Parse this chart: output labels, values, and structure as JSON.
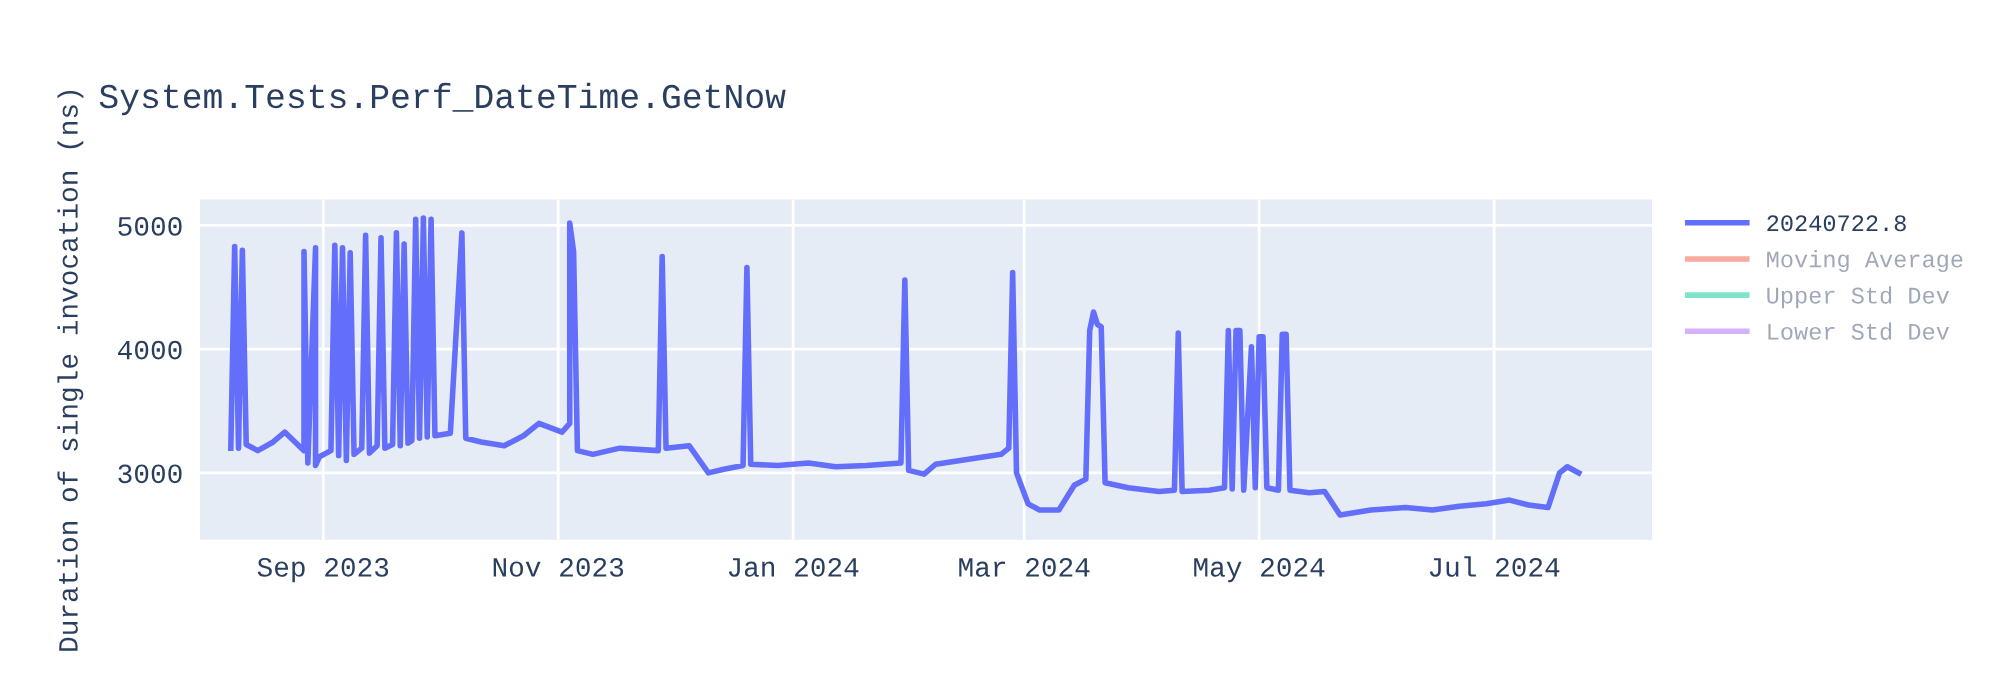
{
  "chart_data": {
    "type": "line",
    "title": "System.Tests.Perf_DateTime.GetNow",
    "ylabel": "Duration of single invocation (ns)",
    "xlim": [
      "2023-07-31",
      "2024-08-11"
    ],
    "ylim": [
      2460,
      5210
    ],
    "yticks": [
      3000,
      4000,
      5000
    ],
    "xticks": [
      {
        "value": "2023-09-01",
        "label": "Sep 2023"
      },
      {
        "value": "2023-11-01",
        "label": "Nov 2023"
      },
      {
        "value": "2024-01-01",
        "label": "Jan 2024"
      },
      {
        "value": "2024-03-01",
        "label": "Mar 2024"
      },
      {
        "value": "2024-05-01",
        "label": "May 2024"
      },
      {
        "value": "2024-07-01",
        "label": "Jul 2024"
      }
    ],
    "grid": true,
    "legend": "right",
    "marker": "none",
    "line_style": "solid",
    "series": [
      {
        "name": "20240722.8",
        "color": "#636efa",
        "x": [
          "2023-08-08",
          "2023-08-09",
          "2023-08-10",
          "2023-08-11",
          "2023-08-12",
          "2023-08-15",
          "2023-08-19",
          "2023-08-22",
          "2023-08-25",
          "2023-08-27",
          "2023-08-27",
          "2023-08-28",
          "2023-08-30",
          "2023-08-30",
          "2023-08-31",
          "2023-09-03",
          "2023-09-04",
          "2023-09-05",
          "2023-09-06",
          "2023-09-07",
          "2023-09-08",
          "2023-09-09",
          "2023-09-11",
          "2023-09-12",
          "2023-09-13",
          "2023-09-15",
          "2023-09-16",
          "2023-09-17",
          "2023-09-19",
          "2023-09-20",
          "2023-09-21",
          "2023-09-22",
          "2023-09-23",
          "2023-09-24",
          "2023-09-25",
          "2023-09-26",
          "2023-09-27",
          "2023-09-28",
          "2023-09-29",
          "2023-09-30",
          "2023-10-04",
          "2023-10-07",
          "2023-10-08",
          "2023-10-12",
          "2023-10-18",
          "2023-10-23",
          "2023-10-27",
          "2023-11-02",
          "2023-11-04",
          "2023-11-04",
          "2023-11-05",
          "2023-11-06",
          "2023-11-10",
          "2023-11-17",
          "2023-11-27",
          "2023-11-28",
          "2023-11-29",
          "2023-12-05",
          "2023-12-10",
          "2023-12-14",
          "2023-12-19",
          "2023-12-20",
          "2023-12-21",
          "2023-12-28",
          "2024-01-05",
          "2024-01-12",
          "2024-01-20",
          "2024-01-29",
          "2024-01-30",
          "2024-01-31",
          "2024-02-04",
          "2024-02-07",
          "2024-02-24",
          "2024-02-26",
          "2024-02-27",
          "2024-02-28",
          "2024-03-02",
          "2024-03-05",
          "2024-03-10",
          "2024-03-14",
          "2024-03-17",
          "2024-03-18",
          "2024-03-19",
          "2024-03-20",
          "2024-03-21",
          "2024-03-22",
          "2024-03-28",
          "2024-04-05",
          "2024-04-09",
          "2024-04-10",
          "2024-04-11",
          "2024-04-18",
          "2024-04-22",
          "2024-04-23",
          "2024-04-24",
          "2024-04-25",
          "2024-04-26",
          "2024-04-27",
          "2024-04-29",
          "2024-04-30",
          "2024-05-01",
          "2024-05-02",
          "2024-05-03",
          "2024-05-06",
          "2024-05-07",
          "2024-05-08",
          "2024-05-09",
          "2024-05-14",
          "2024-05-18",
          "2024-05-22",
          "2024-05-30",
          "2024-06-08",
          "2024-06-15",
          "2024-06-22",
          "2024-06-29",
          "2024-07-05",
          "2024-07-10",
          "2024-07-15",
          "2024-07-18",
          "2024-07-20",
          "2024-07-23"
        ],
        "values": [
          3200,
          4830,
          3200,
          4800,
          3230,
          3180,
          3250,
          3330,
          3240,
          3180,
          4790,
          3080,
          4820,
          3060,
          3130,
          3180,
          4840,
          3140,
          4820,
          3100,
          4780,
          3150,
          3200,
          4920,
          3160,
          3220,
          4900,
          3200,
          3230,
          4940,
          3220,
          4850,
          3240,
          3260,
          5050,
          3280,
          5060,
          3290,
          5050,
          3300,
          3320,
          4940,
          3280,
          3250,
          3220,
          3300,
          3400,
          3330,
          3400,
          5020,
          4790,
          3180,
          3150,
          3200,
          3180,
          4750,
          3200,
          3220,
          3000,
          3030,
          3060,
          4660,
          3070,
          3060,
          3080,
          3050,
          3060,
          3080,
          4560,
          3020,
          2990,
          3070,
          3150,
          3200,
          4620,
          3000,
          2750,
          2700,
          2700,
          2900,
          2950,
          4150,
          4300,
          4200,
          4180,
          2920,
          2880,
          2850,
          2860,
          4130,
          2850,
          2860,
          2880,
          4150,
          2870,
          4150,
          4150,
          2860,
          4020,
          2880,
          4100,
          4100,
          2880,
          2860,
          4120,
          4120,
          2860,
          2840,
          2850,
          2660,
          2700,
          2720,
          2700,
          2730,
          2750,
          2780,
          2740,
          2720,
          3000,
          3050,
          3000
        ]
      },
      {
        "name": "Moving Average",
        "color": "#ef553b"
      },
      {
        "name": "Upper Std Dev",
        "color": "#00cc96"
      },
      {
        "name": "Lower Std Dev",
        "color": "#ab63fa"
      }
    ]
  }
}
